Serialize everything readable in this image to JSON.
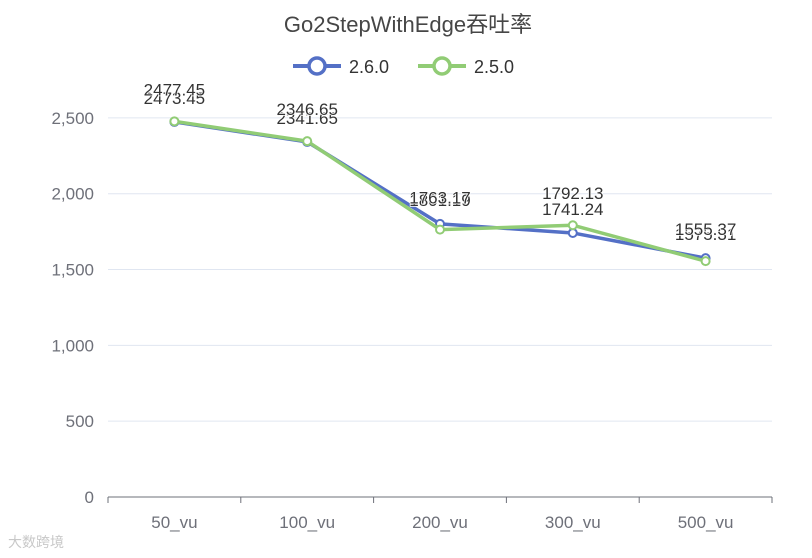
{
  "chart_data": {
    "type": "line",
    "title": "Go2StepWithEdge吞吐率",
    "categories": [
      "50_vu",
      "100_vu",
      "200_vu",
      "300_vu",
      "500_vu"
    ],
    "series": [
      {
        "name": "2.6.0",
        "color": "#5470c6",
        "values": [
          2473.45,
          2341.65,
          1801.19,
          1741.24,
          1575.31
        ]
      },
      {
        "name": "2.5.0",
        "color": "#91cc75",
        "values": [
          2477.45,
          2346.65,
          1763.17,
          1792.13,
          1555.37
        ]
      }
    ],
    "ylim": [
      0,
      2750
    ],
    "yticks": [
      0,
      500,
      1000,
      1500,
      2000,
      2500
    ],
    "ytick_labels": [
      "0",
      "500",
      "1,000",
      "1,500",
      "2,000",
      "2,500"
    ],
    "grid": true,
    "legend": "top-center"
  },
  "watermark": "大数跨境"
}
